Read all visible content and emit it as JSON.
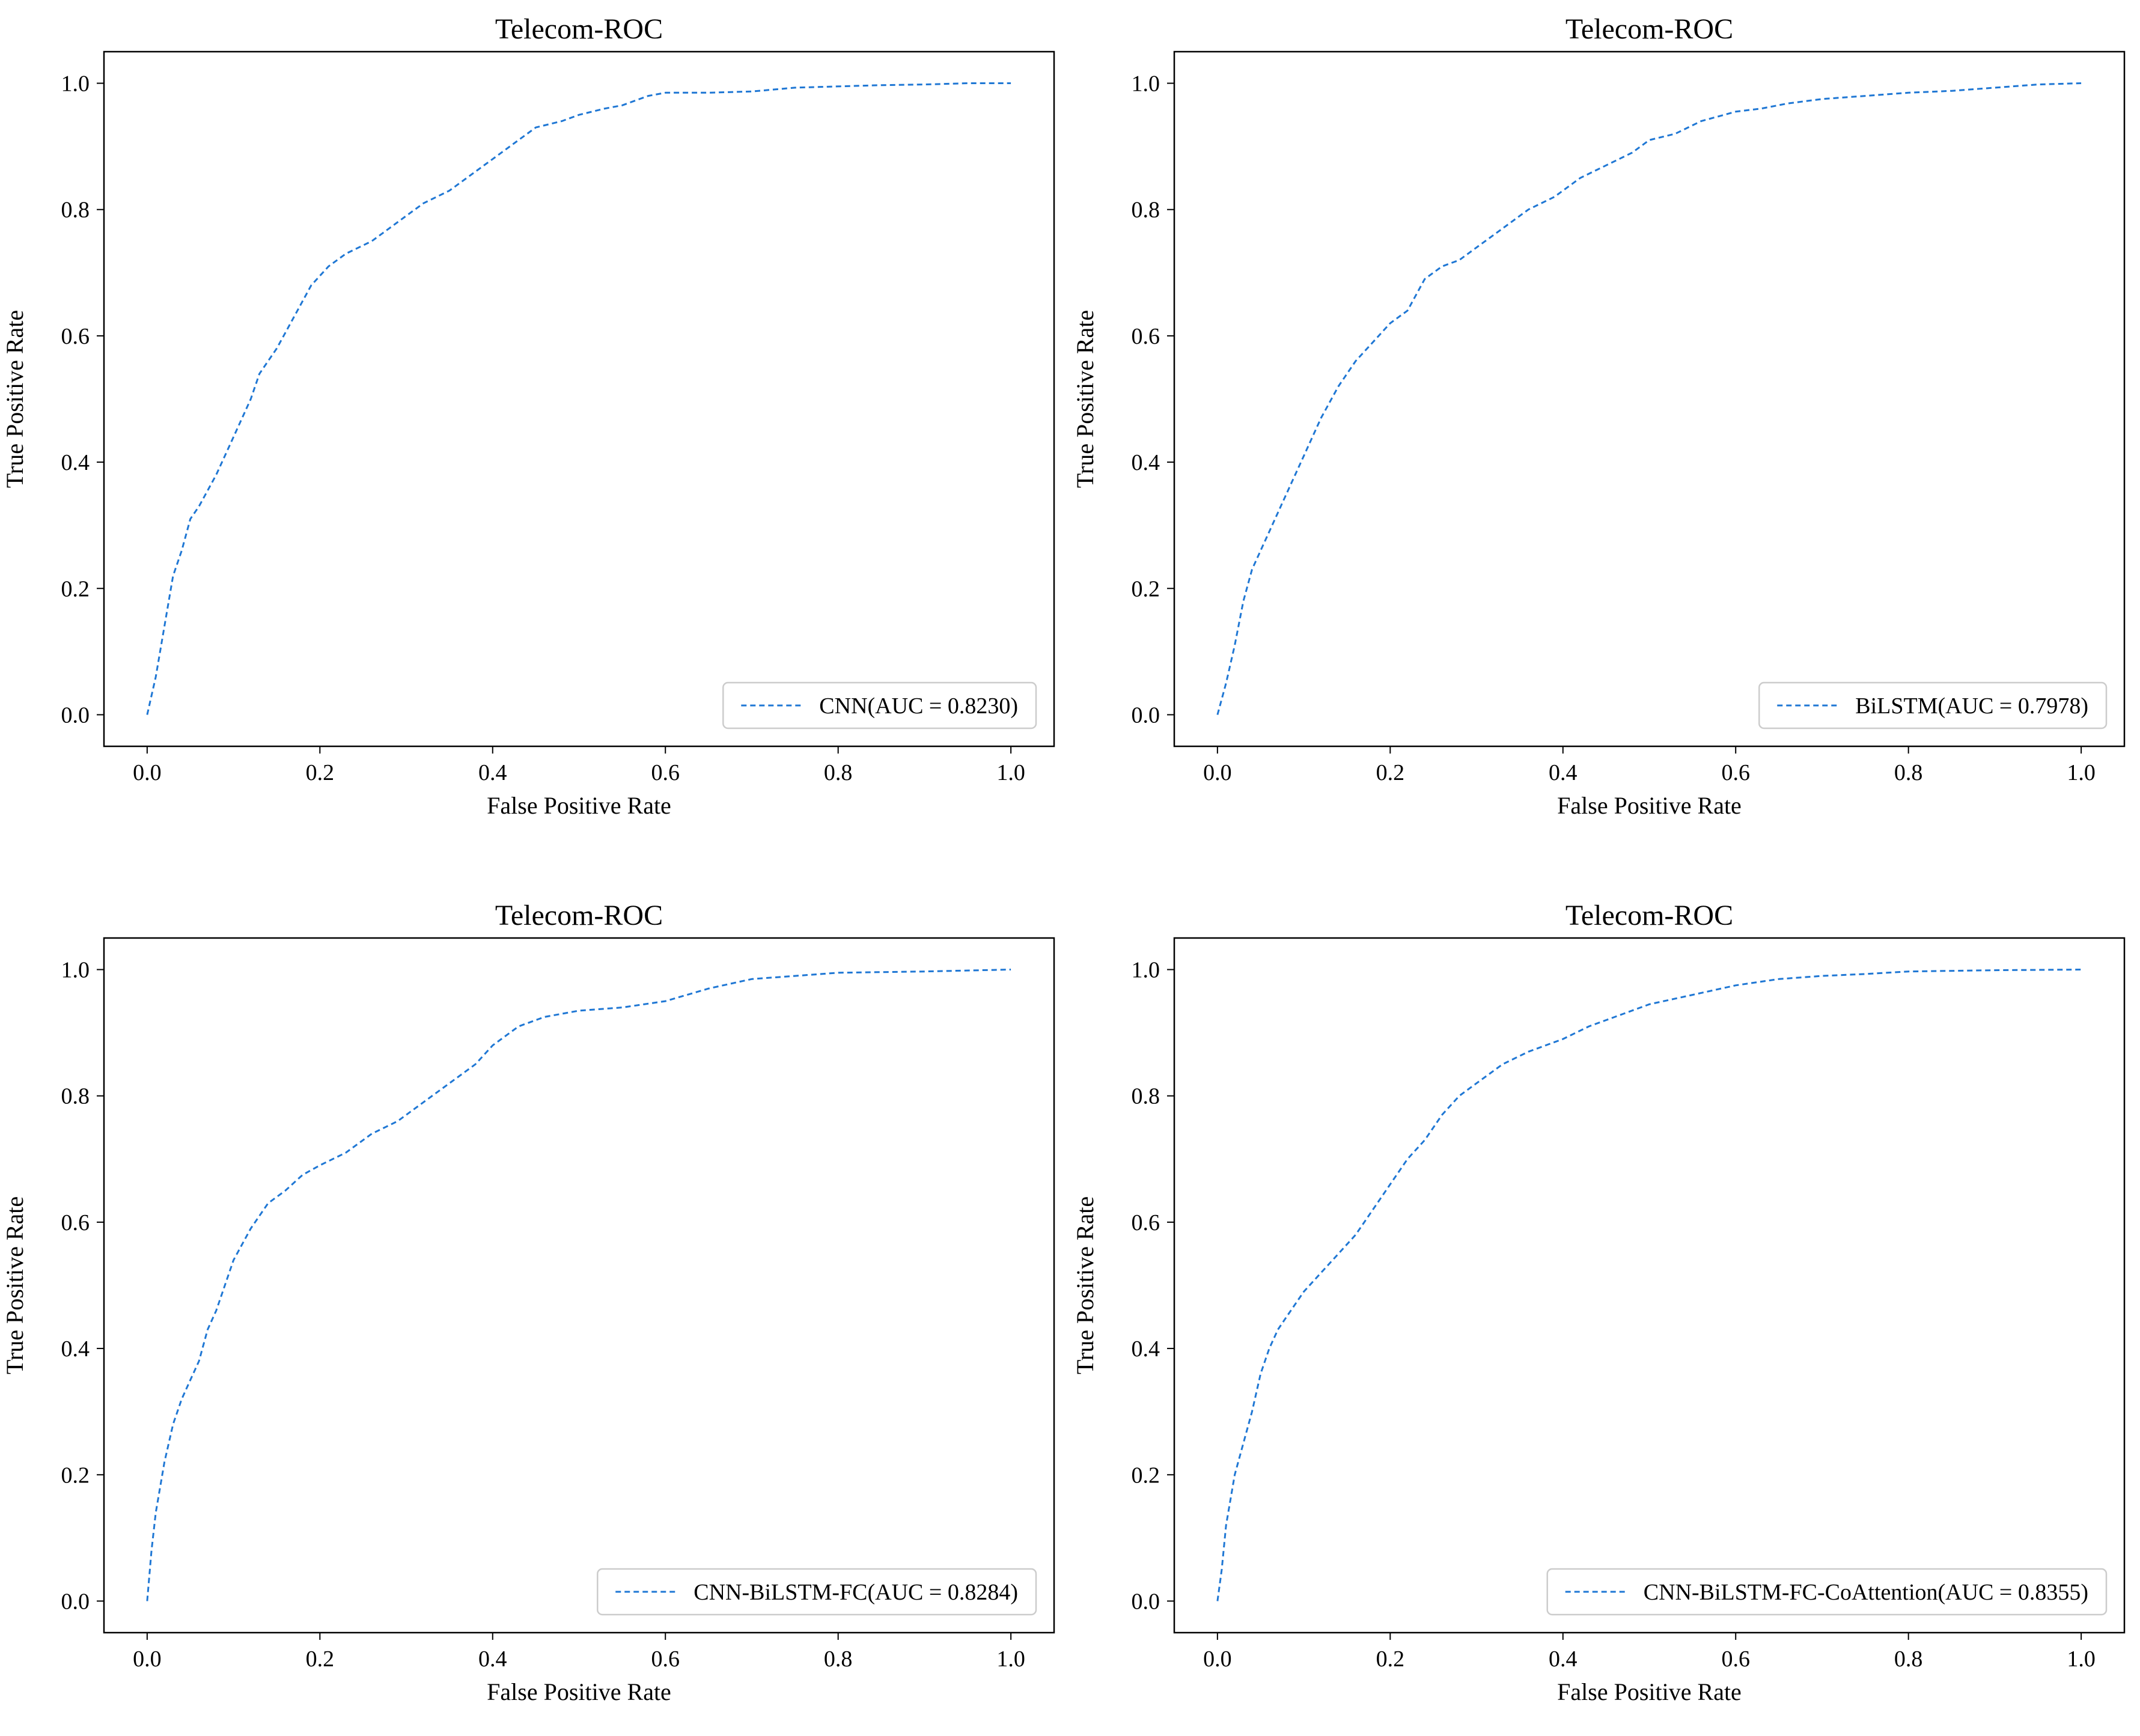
{
  "chart_data": [
    {
      "type": "line",
      "title": "Telecom-ROC",
      "xlabel": "False Positive Rate",
      "ylabel": "True Positive Rate",
      "xlim": [
        -0.05,
        1.05
      ],
      "ylim": [
        -0.05,
        1.05
      ],
      "xticks": [
        "0.0",
        "0.2",
        "0.4",
        "0.6",
        "0.8",
        "1.0"
      ],
      "yticks": [
        "0.0",
        "0.2",
        "0.4",
        "0.6",
        "0.8",
        "1.0"
      ],
      "legend_position": "lower-right",
      "series": [
        {
          "name": "CNN(AUC = 0.8230)",
          "color": "#1f77d4",
          "x": [
            0.0,
            0.01,
            0.02,
            0.03,
            0.04,
            0.05,
            0.06,
            0.08,
            0.1,
            0.12,
            0.13,
            0.15,
            0.17,
            0.19,
            0.21,
            0.23,
            0.26,
            0.28,
            0.3,
            0.32,
            0.35,
            0.38,
            0.4,
            0.43,
            0.45,
            0.48,
            0.5,
            0.53,
            0.55,
            0.58,
            0.6,
            0.65,
            0.7,
            0.75,
            0.8,
            0.85,
            0.9,
            0.95,
            1.0
          ],
          "y": [
            0.0,
            0.06,
            0.14,
            0.22,
            0.26,
            0.31,
            0.33,
            0.38,
            0.44,
            0.5,
            0.54,
            0.58,
            0.63,
            0.68,
            0.71,
            0.73,
            0.75,
            0.77,
            0.79,
            0.81,
            0.83,
            0.86,
            0.88,
            0.91,
            0.93,
            0.94,
            0.95,
            0.96,
            0.965,
            0.98,
            0.985,
            0.985,
            0.987,
            0.993,
            0.995,
            0.997,
            0.998,
            1.0,
            1.0
          ]
        }
      ]
    },
    {
      "type": "line",
      "title": "Telecom-ROC",
      "xlabel": "False Positive Rate",
      "ylabel": "True Positive Rate",
      "xlim": [
        -0.05,
        1.05
      ],
      "ylim": [
        -0.05,
        1.05
      ],
      "xticks": [
        "0.0",
        "0.2",
        "0.4",
        "0.6",
        "0.8",
        "1.0"
      ],
      "yticks": [
        "0.0",
        "0.2",
        "0.4",
        "0.6",
        "0.8",
        "1.0"
      ],
      "legend_position": "lower-right",
      "series": [
        {
          "name": "BiLSTM(AUC = 0.7978)",
          "color": "#1f77d4",
          "x": [
            0.0,
            0.01,
            0.02,
            0.03,
            0.04,
            0.05,
            0.06,
            0.08,
            0.1,
            0.12,
            0.14,
            0.16,
            0.18,
            0.2,
            0.22,
            0.24,
            0.26,
            0.28,
            0.3,
            0.33,
            0.36,
            0.39,
            0.42,
            0.45,
            0.48,
            0.5,
            0.53,
            0.56,
            0.6,
            0.63,
            0.66,
            0.7,
            0.75,
            0.8,
            0.85,
            0.9,
            0.95,
            1.0
          ],
          "y": [
            0.0,
            0.05,
            0.11,
            0.18,
            0.23,
            0.26,
            0.29,
            0.35,
            0.41,
            0.47,
            0.52,
            0.56,
            0.59,
            0.62,
            0.64,
            0.69,
            0.71,
            0.72,
            0.74,
            0.77,
            0.8,
            0.82,
            0.85,
            0.87,
            0.89,
            0.91,
            0.92,
            0.94,
            0.955,
            0.96,
            0.968,
            0.975,
            0.98,
            0.985,
            0.988,
            0.993,
            0.998,
            1.0
          ]
        }
      ]
    },
    {
      "type": "line",
      "title": "Telecom-ROC",
      "xlabel": "False Positive Rate",
      "ylabel": "True Positive Rate",
      "xlim": [
        -0.05,
        1.05
      ],
      "ylim": [
        -0.05,
        1.05
      ],
      "xticks": [
        "0.0",
        "0.2",
        "0.4",
        "0.6",
        "0.8",
        "1.0"
      ],
      "yticks": [
        "0.0",
        "0.2",
        "0.4",
        "0.6",
        "0.8",
        "1.0"
      ],
      "legend_position": "lower-right",
      "series": [
        {
          "name": "CNN-BiLSTM-FC(AUC = 0.8284)",
          "color": "#1f77d4",
          "x": [
            0.0,
            0.005,
            0.01,
            0.02,
            0.03,
            0.04,
            0.05,
            0.06,
            0.07,
            0.08,
            0.09,
            0.1,
            0.12,
            0.14,
            0.16,
            0.18,
            0.2,
            0.23,
            0.26,
            0.29,
            0.32,
            0.35,
            0.38,
            0.4,
            0.43,
            0.46,
            0.5,
            0.55,
            0.6,
            0.65,
            0.7,
            0.75,
            0.8,
            0.9,
            1.0
          ],
          "y": [
            0.0,
            0.08,
            0.14,
            0.22,
            0.28,
            0.32,
            0.35,
            0.38,
            0.43,
            0.46,
            0.5,
            0.54,
            0.59,
            0.63,
            0.65,
            0.675,
            0.69,
            0.71,
            0.74,
            0.76,
            0.79,
            0.82,
            0.85,
            0.88,
            0.91,
            0.925,
            0.935,
            0.94,
            0.95,
            0.97,
            0.985,
            0.99,
            0.995,
            0.997,
            1.0
          ]
        }
      ]
    },
    {
      "type": "line",
      "title": "Telecom-ROC",
      "xlabel": "False Positive Rate",
      "ylabel": "True Positive Rate",
      "xlim": [
        -0.05,
        1.05
      ],
      "ylim": [
        -0.05,
        1.05
      ],
      "xticks": [
        "0.0",
        "0.2",
        "0.4",
        "0.6",
        "0.8",
        "1.0"
      ],
      "yticks": [
        "0.0",
        "0.2",
        "0.4",
        "0.6",
        "0.8",
        "1.0"
      ],
      "legend_position": "lower-right",
      "series": [
        {
          "name": "CNN-BiLSTM-FC-CoAttention(AUC = 0.8355)",
          "color": "#1f77d4",
          "x": [
            0.0,
            0.005,
            0.01,
            0.02,
            0.03,
            0.04,
            0.05,
            0.06,
            0.07,
            0.08,
            0.1,
            0.12,
            0.14,
            0.16,
            0.18,
            0.2,
            0.22,
            0.24,
            0.26,
            0.28,
            0.3,
            0.33,
            0.36,
            0.4,
            0.43,
            0.47,
            0.5,
            0.55,
            0.6,
            0.65,
            0.7,
            0.75,
            0.8,
            0.9,
            1.0
          ],
          "y": [
            0.0,
            0.05,
            0.12,
            0.2,
            0.25,
            0.3,
            0.36,
            0.4,
            0.43,
            0.45,
            0.49,
            0.52,
            0.55,
            0.58,
            0.62,
            0.66,
            0.7,
            0.73,
            0.77,
            0.8,
            0.82,
            0.85,
            0.87,
            0.89,
            0.91,
            0.93,
            0.945,
            0.96,
            0.975,
            0.985,
            0.99,
            0.993,
            0.997,
            0.999,
            1.0
          ]
        }
      ]
    }
  ]
}
